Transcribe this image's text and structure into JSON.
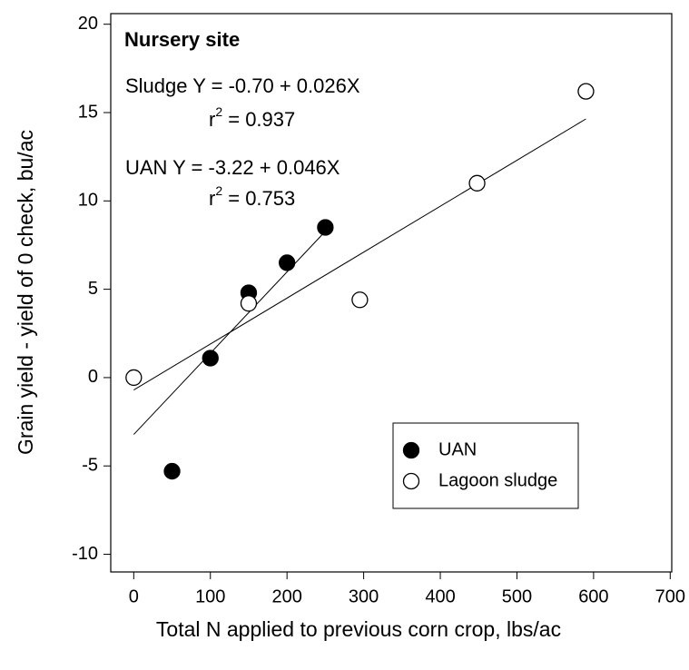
{
  "chart_data": {
    "type": "scatter",
    "xlabel": "Total N applied to previous corn crop, lbs/ac",
    "ylabel": "Grain yield - yield of 0 check, bu/ac",
    "xlim": [
      -30,
      702
    ],
    "ylim": [
      -11,
      20.6
    ],
    "xticks": [
      0,
      100,
      200,
      300,
      400,
      500,
      600,
      700
    ],
    "yticks": [
      -10,
      -5,
      0,
      5,
      10,
      15,
      20
    ],
    "legend": "lower right",
    "series": [
      {
        "name": "UAN",
        "color": "#000000",
        "filled": true,
        "x": [
          50,
          100,
          150,
          200,
          250
        ],
        "values": [
          -5.3,
          1.1,
          4.8,
          6.5,
          8.5
        ]
      },
      {
        "name": "Lagoon sludge",
        "color": "#000000",
        "filled": false,
        "x": [
          0,
          150,
          295,
          448,
          590
        ],
        "values": [
          0,
          4.2,
          4.4,
          11,
          16.2
        ]
      }
    ],
    "fits": [
      {
        "x": [
          0,
          590
        ],
        "values": [
          -0.7,
          14.64
        ]
      },
      {
        "x": [
          0,
          250
        ],
        "values": [
          -3.22,
          8.28
        ]
      }
    ],
    "annotations": [
      {
        "text": "Nursery site",
        "bold": true
      },
      {
        "text": "Sludge  Y = -0.70 + 0.026X"
      },
      {
        "text": "r",
        "sup": "2",
        "rest": " = 0.937"
      },
      {
        "text": "UAN  Y = -3.22 + 0.046X"
      },
      {
        "text": "r",
        "sup": "2",
        "rest": " = 0.753"
      }
    ]
  }
}
